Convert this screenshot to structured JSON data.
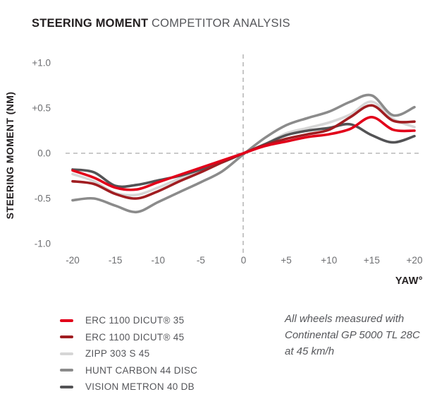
{
  "title": {
    "bold": "STEERING MOMENT",
    "rest": " COMPETITOR ANALYSIS"
  },
  "note": {
    "lines": [
      "All wheels measured with",
      "Continental GP 5000 TL 28C",
      "at 45 km/h"
    ]
  },
  "colors": {
    "title_bold": "#231f20",
    "title_rest": "#55565a",
    "tick_text": "#6d6e71",
    "legend_text": "#55565a",
    "zero_line": "#b9b9b9",
    "background": "#ffffff"
  },
  "chart_data": {
    "type": "line",
    "title": "STEERING MOMENT COMPETITOR ANALYSIS",
    "xlabel": "YAW°",
    "ylabel": "STEERING MOMENT (NM)",
    "xlim": [
      -20,
      20
    ],
    "ylim": [
      -1.0,
      1.0
    ],
    "grid": "dashed zero axes only (horizontal at y=0, vertical at x=0)",
    "legend_position": "bottom-left",
    "x": [
      -20,
      -17.5,
      -15,
      -12.5,
      -10,
      -7.5,
      -5,
      -2.5,
      0,
      2.5,
      5,
      7.5,
      10,
      12.5,
      15,
      17.5,
      20
    ],
    "xticks": {
      "values": [
        -20,
        -15,
        -10,
        -5,
        0,
        5,
        10,
        15,
        20
      ],
      "labels": [
        "-20",
        "-15",
        "-10",
        "-5",
        "0",
        "+5",
        "+10",
        "+15",
        "+20"
      ]
    },
    "yticks": {
      "values": [
        1.0,
        0.5,
        0.0,
        -0.5,
        -1.0
      ],
      "labels": [
        "+1.0",
        "+0.5",
        "0.0",
        "-0.5",
        "-1.0"
      ]
    },
    "series": [
      {
        "name": "ERC 1100 DICUT® 35",
        "color": "#e2001a",
        "values": [
          -0.19,
          -0.27,
          -0.38,
          -0.4,
          -0.32,
          -0.24,
          -0.16,
          -0.08,
          0.0,
          0.08,
          0.13,
          0.18,
          0.21,
          0.27,
          0.4,
          0.26,
          0.25
        ]
      },
      {
        "name": "ERC 1100 DICUT® 45",
        "color": "#a01d21",
        "values": [
          -0.31,
          -0.34,
          -0.45,
          -0.5,
          -0.42,
          -0.31,
          -0.21,
          -0.1,
          0.0,
          0.09,
          0.16,
          0.21,
          0.26,
          0.4,
          0.53,
          0.36,
          0.35
        ]
      },
      {
        "name": "ZIPP 303 S 45",
        "color": "#d6d6d6",
        "values": [
          -0.23,
          -0.31,
          -0.44,
          -0.46,
          -0.38,
          -0.28,
          -0.19,
          -0.09,
          0.0,
          0.1,
          0.22,
          0.28,
          0.34,
          0.43,
          0.57,
          0.38,
          0.29
        ]
      },
      {
        "name": "HUNT CARBON 44 DISC",
        "color": "#8b8b8b",
        "values": [
          -0.52,
          -0.5,
          -0.58,
          -0.65,
          -0.54,
          -0.43,
          -0.32,
          -0.2,
          -0.01,
          0.17,
          0.31,
          0.39,
          0.46,
          0.57,
          0.64,
          0.42,
          0.51
        ]
      },
      {
        "name": "VISION METRON 40 DB",
        "color": "#535355",
        "values": [
          -0.18,
          -0.21,
          -0.36,
          -0.35,
          -0.3,
          -0.25,
          -0.18,
          -0.1,
          0.0,
          0.1,
          0.2,
          0.25,
          0.28,
          0.32,
          0.2,
          0.12,
          0.19
        ]
      }
    ]
  }
}
